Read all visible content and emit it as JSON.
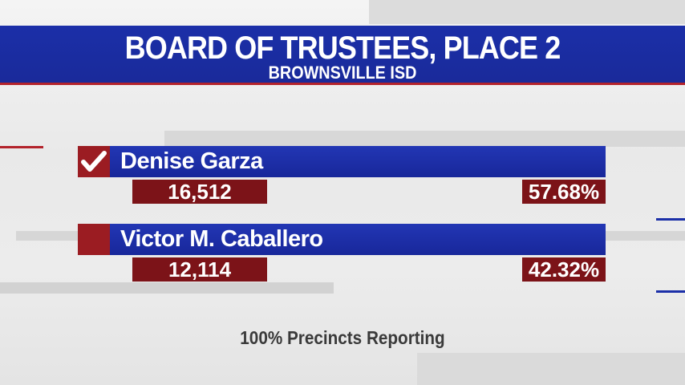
{
  "header": {
    "title": "BOARD OF TRUSTEES, PLACE 2",
    "subtitle": "BROWNSVILLE ISD"
  },
  "candidates": [
    {
      "name": "Denise Garza",
      "votes": "16,512",
      "percent": "57.68%",
      "winner": true
    },
    {
      "name": "Victor M. Caballero",
      "votes": "12,114",
      "percent": "42.32%",
      "winner": false
    }
  ],
  "footer": "100% Precincts Reporting"
}
